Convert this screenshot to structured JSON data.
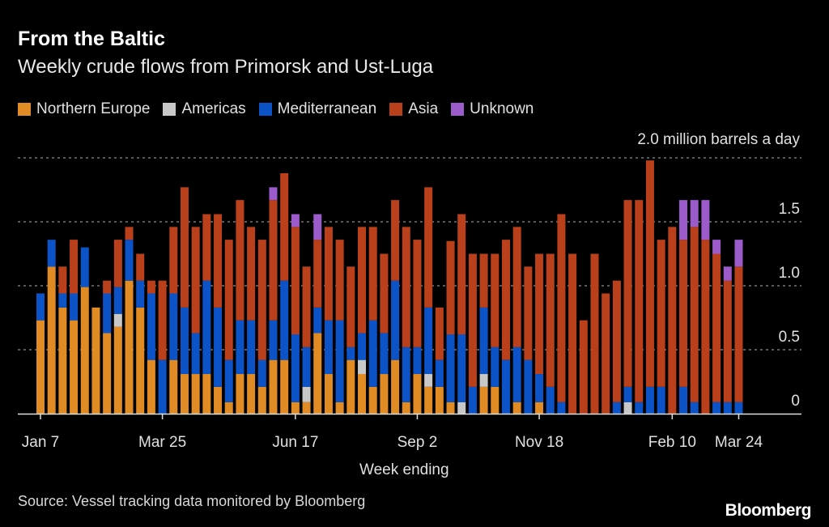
{
  "header": {
    "title": "From the Baltic",
    "subtitle": "Weekly crude flows from Primorsk and Ust-Luga"
  },
  "footer": {
    "source": "Source: Vessel tracking data monitored by Bloomberg",
    "logo": "Bloomberg"
  },
  "chart_data": {
    "type": "bar",
    "stacked": true,
    "title": "From the Baltic",
    "subtitle": "Weekly crude flows from Primorsk and Ust-Luga",
    "xlabel": "Week ending",
    "ylabel": "2.0 million barrels a day",
    "ylim": [
      0,
      2.0
    ],
    "yticks": [
      {
        "value": 0,
        "label": "0"
      },
      {
        "value": 0.5,
        "label": "0.5"
      },
      {
        "value": 1.0,
        "label": "1.0"
      },
      {
        "value": 1.5,
        "label": "1.5"
      },
      {
        "value": 2.0,
        "label": "2.0 million barrels a day"
      }
    ],
    "xticks": [
      {
        "index": 0,
        "label": "Jan 7"
      },
      {
        "index": 11,
        "label": "Mar 25"
      },
      {
        "index": 23,
        "label": "Jun 17"
      },
      {
        "index": 34,
        "label": "Sep 2"
      },
      {
        "index": 45,
        "label": "Nov 18"
      },
      {
        "index": 57,
        "label": "Feb 10"
      },
      {
        "index": 63,
        "label": "Mar 24"
      }
    ],
    "grid": true,
    "legend_position": "top-left",
    "series": [
      {
        "name": "Northern Europe",
        "color": "#e08b24",
        "values": [
          0.73,
          1.15,
          0.83,
          0.73,
          0.99,
          0.83,
          0.63,
          0.68,
          1.04,
          0.83,
          0.42,
          0,
          0.42,
          0.31,
          0.31,
          0.31,
          0.21,
          0.09,
          0.31,
          0.31,
          0.21,
          0.42,
          0.42,
          0.09,
          0.09,
          0.63,
          0.31,
          0.09,
          0.42,
          0.31,
          0.21,
          0.31,
          0.42,
          0.09,
          0.31,
          0.21,
          0.21,
          0.09,
          0,
          0,
          0.21,
          0.21,
          0,
          0.09,
          0,
          0.09,
          0,
          0,
          0,
          0,
          0,
          0,
          0,
          0,
          0,
          0,
          0,
          0,
          0,
          0,
          0,
          0,
          0,
          0
        ]
      },
      {
        "name": "Americas",
        "color": "#c8c8c8",
        "values": [
          0,
          0,
          0,
          0,
          0,
          0,
          0,
          0.1,
          0,
          0,
          0,
          0,
          0,
          0,
          0,
          0,
          0,
          0,
          0,
          0,
          0,
          0,
          0,
          0,
          0.12,
          0,
          0,
          0,
          0,
          0.11,
          0,
          0,
          0,
          0,
          0,
          0.1,
          0,
          0,
          0.09,
          0,
          0.1,
          0,
          0,
          0,
          0,
          0,
          0,
          0,
          0,
          0,
          0,
          0,
          0,
          0.09,
          0,
          0,
          0,
          0,
          0,
          0,
          0,
          0,
          0,
          0
        ]
      },
      {
        "name": "Mediterranean",
        "color": "#0b53c6",
        "values": [
          0.21,
          0.21,
          0.11,
          0.21,
          0.31,
          0,
          0.31,
          0.21,
          0.32,
          0.21,
          0.52,
          0.42,
          0.52,
          0.52,
          0.32,
          0.73,
          0.62,
          0.33,
          0.42,
          0.42,
          0.21,
          0.31,
          0.62,
          0.53,
          0.31,
          0.2,
          0.42,
          0.64,
          0.1,
          0.21,
          0.52,
          0.32,
          0.62,
          0.43,
          0.21,
          0.52,
          0.21,
          0.53,
          0.53,
          0.21,
          0.52,
          0.31,
          0.42,
          0.43,
          0.42,
          0.22,
          0.21,
          0.09,
          0,
          0,
          0,
          0,
          0.09,
          0.12,
          0.09,
          0.21,
          0.21,
          0,
          0.21,
          0.09,
          0,
          0.09,
          0.09,
          0.09
        ]
      },
      {
        "name": "Asia",
        "color": "#b9401b",
        "values": [
          0,
          0,
          0.21,
          0.42,
          0,
          0,
          0.1,
          0.37,
          0.1,
          0.21,
          0.1,
          0.62,
          0.52,
          0.94,
          0.83,
          0.52,
          0.73,
          0.94,
          0.94,
          0.73,
          0.94,
          0.94,
          0.84,
          0.84,
          0.63,
          0.53,
          0.73,
          0.63,
          0.63,
          0.83,
          0.73,
          0.62,
          0.63,
          0.94,
          0.84,
          0.94,
          0.41,
          0.73,
          0.94,
          1.04,
          0.42,
          0.73,
          0.94,
          0.94,
          0.73,
          0.94,
          1.04,
          1.47,
          1.25,
          0.73,
          1.25,
          0.94,
          0.95,
          1.46,
          1.58,
          1.77,
          1.15,
          1.46,
          1.15,
          1.37,
          1.36,
          1.16,
          0.95,
          1.06
        ]
      },
      {
        "name": "Unknown",
        "color": "#9b5bcb",
        "values": [
          0,
          0,
          0,
          0,
          0,
          0,
          0,
          0,
          0,
          0,
          0,
          0,
          0,
          0,
          0,
          0,
          0,
          0,
          0,
          0,
          0,
          0.1,
          0,
          0.1,
          0,
          0.2,
          0,
          0,
          0,
          0,
          0,
          0,
          0,
          0,
          0,
          0,
          0,
          0,
          0,
          0,
          0,
          0,
          0,
          0,
          0,
          0,
          0,
          0,
          0,
          0,
          0,
          0,
          0,
          0,
          0,
          0,
          0,
          0,
          0.31,
          0.21,
          0.31,
          0.11,
          0.11,
          0.21
        ]
      }
    ]
  }
}
